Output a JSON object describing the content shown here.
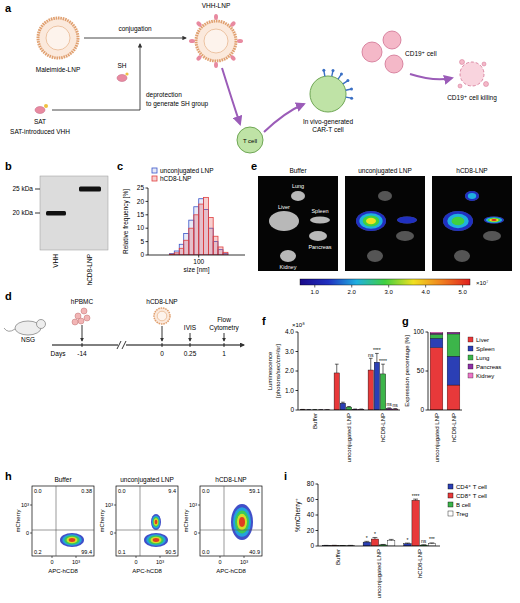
{
  "panel_labels": [
    "a",
    "b",
    "c",
    "d",
    "e",
    "f",
    "g",
    "h",
    "i"
  ],
  "diagram_a": {
    "maleimide_lnp": "Maleimide-LNP",
    "conjugation": "conjugation",
    "vhh_lnp": "VHH-LNP",
    "sh": "SH",
    "sat": "SAT",
    "sat_vhh": "SAT-introduced VHH",
    "deprotection": [
      "deprotection",
      "to generate SH group"
    ],
    "t_cell": "T cell",
    "car_t": [
      "In vivo-generated",
      "CAR-T cell"
    ],
    "cd19_cell": "CD19⁺ cell",
    "killing": "CD19⁺ cell killing"
  },
  "blot_b": {
    "markers": [
      "25 kDa",
      "20 kDa"
    ],
    "lanes": [
      "VHH",
      "hCD8-LNP"
    ]
  },
  "timeline_d": {
    "subjects": [
      "NSG",
      "hPBMC",
      "hCD8-LNP"
    ],
    "axis_label": "Days",
    "days": [
      "-14",
      "0",
      "0.25",
      "1"
    ],
    "readouts": [
      [
        "IVIS"
      ],
      [
        "Flow",
        "Cytometry"
      ]
    ]
  },
  "images_e": {
    "titles": [
      "Buffer",
      "unconjugated LNP",
      "hCD8-LNP"
    ],
    "organs": [
      "Lung",
      "Spleen",
      "Liver",
      "Pancreas",
      "Kidney"
    ],
    "colorbar": {
      "range": [
        0.6,
        5.2
      ],
      "ticks": [
        {
          "value": 1,
          "label": "1.0"
        },
        {
          "value": 2,
          "label": "2.0"
        },
        {
          "value": 3,
          "label": "3.0"
        },
        {
          "value": 4,
          "label": "4.0"
        },
        {
          "value": 5,
          "label": "5.0"
        }
      ],
      "multiplier": "×10⁷"
    }
  },
  "flow_h": {
    "titles": [
      "Buffer",
      "unconjugated LNP",
      "hCD8-LNP"
    ],
    "y_label": "mCherry",
    "x_label": "APC-hCD8",
    "axis_ticks": [
      "0",
      "10³"
    ],
    "quadrants": [
      [
        "0.0",
        "0.38",
        "0.2",
        "99.4"
      ],
      [
        "0.0",
        "9.4",
        "0.1",
        "90.5"
      ],
      [
        "0.0",
        "59.1",
        "0.0",
        "40.9"
      ]
    ]
  },
  "chart_data": [
    {
      "type": "histogram",
      "x_label": "size [nm]",
      "y_label": "Relative frequency [%]",
      "log": "x",
      "bins": [
        50,
        56,
        63,
        70,
        79,
        89,
        100,
        112,
        126,
        141,
        158,
        178,
        200
      ],
      "series": [
        {
          "name": "unconjugated LNP",
          "color": "#3b55c8",
          "values": [
            0.5,
            1.5,
            4,
            8,
            13,
            18,
            21,
            17,
            10,
            5,
            2,
            0.5
          ]
        },
        {
          "name": "hCD8-LNP",
          "color": "#e04040",
          "values": [
            0.3,
            0.8,
            2.5,
            5.5,
            10,
            15,
            19,
            21.5,
            14,
            7,
            3,
            1
          ]
        }
      ],
      "xlim": [
        30,
        300
      ],
      "xticks": [
        100
      ],
      "ylim": [
        0,
        25
      ],
      "yticks": [
        0,
        5,
        10,
        15,
        20,
        25
      ],
      "legend": "top"
    },
    {
      "type": "bar",
      "y_label": [
        "Luminescence",
        "[photons/sec/cm²/sr]"
      ],
      "y_multiplier": "×10⁸",
      "categories": [
        "Buffer",
        "unconjugated LNP",
        "hCD8-LNP"
      ],
      "series": [
        {
          "color": "#e8393a",
          "values": [
            0.02,
            1.9,
            2.05
          ],
          "errors": [
            0.01,
            0.45,
            0.6
          ],
          "significance": [
            null,
            null,
            "ns"
          ]
        },
        {
          "color": "#2b3fb5",
          "values": [
            0.01,
            0.35,
            2.45
          ],
          "errors": [
            0.01,
            0.05,
            0.45
          ],
          "significance": [
            null,
            null,
            "****"
          ]
        },
        {
          "color": "#3cb54a",
          "values": [
            0.01,
            0.15,
            1.85
          ],
          "errors": [
            0.01,
            0.03,
            0.5
          ],
          "significance": [
            null,
            null,
            "****"
          ]
        },
        {
          "color": "#8e2fa6",
          "values": [
            0.01,
            0.04,
            0.08
          ],
          "errors": [
            0.005,
            0.01,
            0.03
          ],
          "significance": [
            null,
            null,
            "ns"
          ]
        },
        {
          "color": "#ec75c7",
          "values": [
            0.01,
            0.04,
            0.05
          ],
          "errors": [
            0.005,
            0.01,
            0.02
          ],
          "significance": [
            null,
            null,
            "ns"
          ]
        }
      ],
      "ylim": [
        0,
        4
      ],
      "yticks": [
        0,
        {
          "value": 1,
          "label": "1.0"
        },
        {
          "value": 2,
          "label": "2.0"
        },
        {
          "value": 3,
          "label": "3.0"
        },
        {
          "value": 4,
          "label": "4.0"
        }
      ]
    },
    {
      "type": "bar",
      "stacked": true,
      "y_label": "Expression percentage [%]",
      "categories": [
        "unconjugated LNP",
        "hCD8-LNP"
      ],
      "series": [
        {
          "name": "Liver",
          "color": "#e8393a",
          "values": [
            80,
            32
          ]
        },
        {
          "name": "Spleen",
          "color": "#2b3fb5",
          "values": [
            12,
            37
          ]
        },
        {
          "name": "Lung",
          "color": "#3cb54a",
          "values": [
            5,
            28.5
          ]
        },
        {
          "name": "Pancreas",
          "color": "#8e2fa6",
          "values": [
            1.5,
            2
          ]
        },
        {
          "name": "Kidney",
          "color": "#ec75c7",
          "values": [
            1.5,
            0.5
          ]
        }
      ],
      "ylim": [
        0,
        100
      ],
      "yticks": [
        0,
        50,
        100
      ],
      "legend": "right"
    },
    {
      "type": "bar",
      "y_label": "%mCherry⁺",
      "categories": [
        "Buffer",
        "unconjugated LNP",
        "hCD8-LNP"
      ],
      "series": [
        {
          "name": "CD4⁺ T cell",
          "color": "#2b3fb5",
          "values": [
            0.5,
            5,
            3
          ],
          "errors": [
            0.3,
            1,
            0.8
          ],
          "significance": [
            null,
            "*",
            "*"
          ]
        },
        {
          "name": "CD8⁺ T cell",
          "color": "#e8393a",
          "values": [
            0.6,
            9,
            59
          ],
          "errors": [
            0.3,
            2,
            1.5
          ],
          "significance": [
            null,
            "*",
            "****"
          ]
        },
        {
          "name": "B cell",
          "color": "#3cb54a",
          "values": [
            0.3,
            1.5,
            1.2
          ],
          "errors": [
            0.2,
            0.5,
            0.4
          ],
          "significance": [
            null,
            null,
            "ns"
          ]
        },
        {
          "name": "Treg",
          "color": "#ffffff",
          "values": [
            0.5,
            7,
            3
          ],
          "errors": [
            0.3,
            1.5,
            1
          ],
          "significance": [
            null,
            null,
            "***"
          ]
        }
      ],
      "ylim": [
        0,
        80
      ],
      "yticks": [
        0,
        20,
        40,
        60,
        80
      ],
      "legend": "top-right"
    }
  ]
}
